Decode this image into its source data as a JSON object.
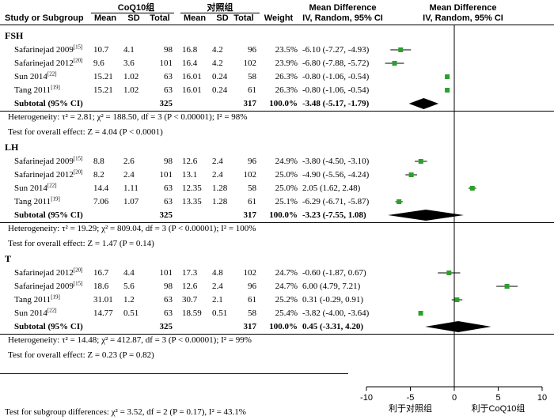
{
  "header": {
    "col_study": "Study or Subgroup",
    "group_exp": "CoQ10组",
    "group_ctl": "对照组",
    "col_mean": "Mean",
    "col_sd": "SD",
    "col_total": "Total",
    "col_weight": "Weight",
    "col_md_title": "Mean Difference",
    "col_md_sub": "IV, Random, 95% CI",
    "plot_title": "Mean Difference",
    "plot_sub": "IV, Random, 95% CI"
  },
  "groups": [
    {
      "name": "FSH",
      "studies": [
        {
          "study": "Safarinejad 2009",
          "ref": "[15]",
          "exp_mean": "10.7",
          "exp_sd": "4.1",
          "exp_total": "98",
          "ctl_mean": "16.8",
          "ctl_sd": "4.2",
          "ctl_total": "96",
          "weight": "23.5%",
          "ci": "-6.10 (-7.27, -4.93)"
        },
        {
          "study": "Safarinejad 2012",
          "ref": "[20]",
          "exp_mean": "9.6",
          "exp_sd": "3.6",
          "exp_total": "101",
          "ctl_mean": "16.4",
          "ctl_sd": "4.2",
          "ctl_total": "102",
          "weight": "23.9%",
          "ci": "-6.80 (-7.88, -5.72)"
        },
        {
          "study": "Sun 2014",
          "ref": "[22]",
          "exp_mean": "15.21",
          "exp_sd": "1.02",
          "exp_total": "63",
          "ctl_mean": "16.01",
          "ctl_sd": "0.24",
          "ctl_total": "58",
          "weight": "26.3%",
          "ci": "-0.80 (-1.06, -0.54)"
        },
        {
          "study": "Tang 2011",
          "ref": "[19]",
          "exp_mean": "15.21",
          "exp_sd": "1.02",
          "exp_total": "63",
          "ctl_mean": "16.01",
          "ctl_sd": "0.24",
          "ctl_total": "61",
          "weight": "26.3%",
          "ci": "-0.80 (-1.06, -0.54)"
        }
      ],
      "subtotal": {
        "label": "Subtotal (95% CI)",
        "exp_total": "325",
        "ctl_total": "317",
        "weight": "100.0%",
        "ci": "-3.48 (-5.17, -1.79)"
      },
      "heterogeneity": "Heterogeneity: τ² = 2.81; χ² = 188.50, df = 3 (P < 0.00001); I² = 98%",
      "overall": "Test for overall effect: Z = 4.04 (P < 0.0001)"
    },
    {
      "name": "LH",
      "studies": [
        {
          "study": "Safarinejad 2009",
          "ref": "[15]",
          "exp_mean": "8.8",
          "exp_sd": "2.6",
          "exp_total": "98",
          "ctl_mean": "12.6",
          "ctl_sd": "2.4",
          "ctl_total": "96",
          "weight": "24.9%",
          "ci": "-3.80 (-4.50, -3.10)"
        },
        {
          "study": "Safarinejad 2012",
          "ref": "[20]",
          "exp_mean": "8.2",
          "exp_sd": "2.4",
          "exp_total": "101",
          "ctl_mean": "13.1",
          "ctl_sd": "2.4",
          "ctl_total": "102",
          "weight": "25.0%",
          "ci": "-4.90 (-5.56, -4.24)"
        },
        {
          "study": "Sun 2014",
          "ref": "[22]",
          "exp_mean": "14.4",
          "exp_sd": "1.11",
          "exp_total": "63",
          "ctl_mean": "12.35",
          "ctl_sd": "1.28",
          "ctl_total": "58",
          "weight": "25.0%",
          "ci": "2.05 (1.62, 2.48)"
        },
        {
          "study": "Tang 2011",
          "ref": "[19]",
          "exp_mean": "7.06",
          "exp_sd": "1.07",
          "exp_total": "63",
          "ctl_mean": "13.35",
          "ctl_sd": "1.28",
          "ctl_total": "61",
          "weight": "25.1%",
          "ci": "-6.29 (-6.71, -5.87)"
        }
      ],
      "subtotal": {
        "label": "Subtotal (95% CI)",
        "exp_total": "325",
        "ctl_total": "317",
        "weight": "100.0%",
        "ci": "-3.23 (-7.55, 1.08)"
      },
      "heterogeneity": "Heterogeneity: τ² = 19.29; χ² = 809.04, df = 3 (P < 0.00001); I² = 100%",
      "overall": "Test for overall effect: Z = 1.47 (P = 0.14)"
    },
    {
      "name": "T",
      "studies": [
        {
          "study": "Safarinejad 2012",
          "ref": "[20]",
          "exp_mean": "16.7",
          "exp_sd": "4.4",
          "exp_total": "101",
          "ctl_mean": "17.3",
          "ctl_sd": "4.8",
          "ctl_total": "102",
          "weight": "24.7%",
          "ci": "-0.60 (-1.87, 0.67)"
        },
        {
          "study": "Safarinejad 2009",
          "ref": "[15]",
          "exp_mean": "18.6",
          "exp_sd": "5.6",
          "exp_total": "98",
          "ctl_mean": "12.6",
          "ctl_sd": "2.4",
          "ctl_total": "96",
          "weight": "24.7%",
          "ci": "6.00 (4.79, 7.21)"
        },
        {
          "study": "Tang 2011",
          "ref": "[19]",
          "exp_mean": "31.01",
          "exp_sd": "1.2",
          "exp_total": "63",
          "ctl_mean": "30.7",
          "ctl_sd": "2.1",
          "ctl_total": "61",
          "weight": "25.2%",
          "ci": "0.31 (-0.29, 0.91)"
        },
        {
          "study": "Sun 2014",
          "ref": "[22]",
          "exp_mean": "14.77",
          "exp_sd": "0.51",
          "exp_total": "63",
          "ctl_mean": "18.59",
          "ctl_sd": "0.51",
          "ctl_total": "58",
          "weight": "25.4%",
          "ci": "-3.82 (-4.00, -3.64)"
        }
      ],
      "subtotal": {
        "label": "Subtotal (95% CI)",
        "exp_total": "325",
        "ctl_total": "317",
        "weight": "100.0%",
        "ci": "0.45 (-3.31, 4.20)"
      },
      "heterogeneity": "Heterogeneity: τ² = 14.48; χ² = 412.87, df = 3 (P < 0.00001); I² = 99%",
      "overall": "Test for overall effect: Z = 0.23 (P = 0.82)"
    }
  ],
  "footer": "Test for subgroup differences: χ² = 3.52, df = 2 (P = 0.17), I² = 43.1%",
  "colors": {
    "study_marker": "#2ca02c",
    "diamond": "#000000",
    "line": "#000000"
  },
  "chart_data": {
    "type": "forest",
    "xlim": [
      -10,
      10
    ],
    "x_ticks": [
      "-10",
      "-5",
      "0",
      "5",
      "10"
    ],
    "favours_left": "利于对照组",
    "favours_right": "利于CoQ10组",
    "groups": [
      {
        "name": "FSH",
        "points": [
          [
            -6.1,
            -7.27,
            -4.93
          ],
          [
            -6.8,
            -7.88,
            -5.72
          ],
          [
            -0.8,
            -1.06,
            -0.54
          ],
          [
            -0.8,
            -1.06,
            -0.54
          ]
        ],
        "pooled": [
          -3.48,
          -5.17,
          -1.79
        ]
      },
      {
        "name": "LH",
        "points": [
          [
            -3.8,
            -4.5,
            -3.1
          ],
          [
            -4.9,
            -5.56,
            -4.24
          ],
          [
            2.05,
            1.62,
            2.48
          ],
          [
            -6.29,
            -6.71,
            -5.87
          ]
        ],
        "pooled": [
          -3.23,
          -7.55,
          1.08
        ]
      },
      {
        "name": "T",
        "points": [
          [
            -0.6,
            -1.87,
            0.67
          ],
          [
            6.0,
            4.79,
            7.21
          ],
          [
            0.31,
            -0.29,
            0.91
          ],
          [
            -3.82,
            -4.0,
            -3.64
          ]
        ],
        "pooled": [
          0.45,
          -3.31,
          4.2
        ]
      }
    ]
  }
}
